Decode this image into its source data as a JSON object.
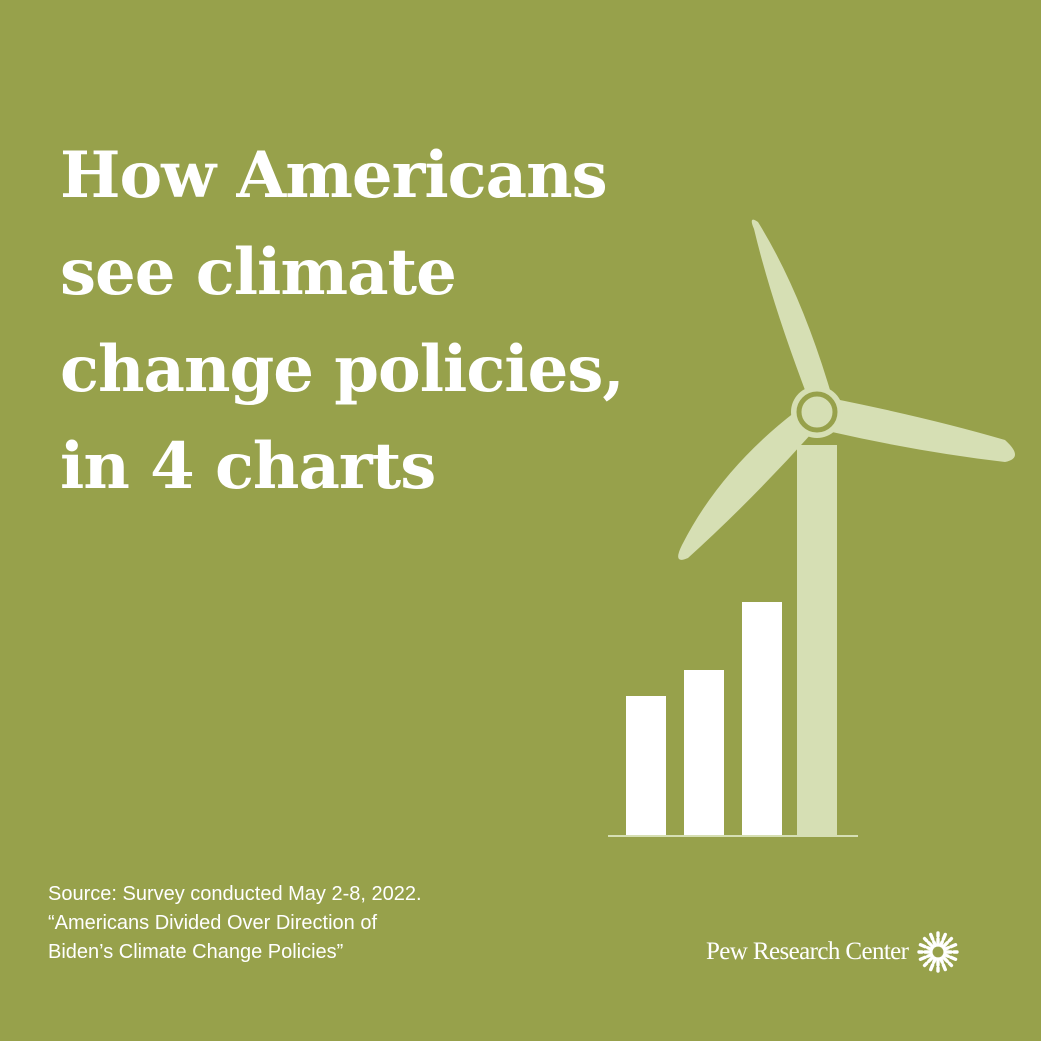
{
  "headline": {
    "lines": [
      "How Americans",
      "see climate",
      "change policies,",
      "in 4 charts"
    ]
  },
  "illustration": {
    "icon": "wind-turbine-with-bar-chart-icon",
    "bar_levels": [
      0.6,
      0.71,
      1.0
    ],
    "colors": {
      "bars": "#ffffff",
      "turbine": "#d6dfb4",
      "baseline": "#d6dfb4"
    }
  },
  "source": {
    "lines": [
      "Source: Survey conducted May 2-8, 2022.",
      "“Americans Divided Over Direction of",
      "Biden’s Climate Change Policies”"
    ]
  },
  "brand": {
    "name": "Pew Research Center",
    "logo_icon": "pew-sunburst-logo-icon"
  },
  "colors": {
    "background": "#97a14b",
    "text": "#ffffff"
  }
}
